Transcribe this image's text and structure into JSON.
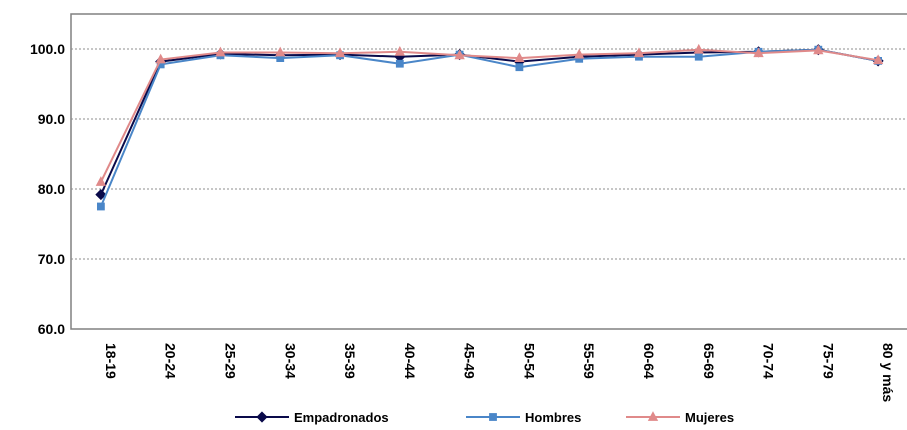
{
  "chart_data": {
    "type": "line",
    "categories": [
      "18-19",
      "20-24",
      "25-29",
      "30-34",
      "35-39",
      "40-44",
      "45-49",
      "50-54",
      "55-59",
      "60-64",
      "65-69",
      "70-74",
      "75-79",
      "80 y más"
    ],
    "ylim": [
      60,
      105
    ],
    "yticks": [
      "60.0",
      "70.0",
      "80.0",
      "90.0",
      "100.0"
    ],
    "title": "",
    "xlabel": "",
    "ylabel": "",
    "grid": "horizontal dotted",
    "legend_position": "bottom",
    "series": [
      {
        "name": "Empadronados",
        "color": "#0a0a4a",
        "marker": "diamond",
        "values": [
          79.2,
          98.2,
          99.3,
          99.1,
          99.2,
          98.9,
          99.2,
          98.2,
          98.9,
          99.2,
          99.5,
          99.6,
          99.9,
          98.3
        ]
      },
      {
        "name": "Hombres",
        "color": "#4a86c8",
        "marker": "square",
        "values": [
          77.5,
          97.8,
          99.1,
          98.7,
          99.1,
          97.9,
          99.2,
          97.4,
          98.6,
          98.9,
          98.9,
          99.6,
          99.9,
          98.3
        ]
      },
      {
        "name": "Mujeres",
        "color": "#e08a8a",
        "marker": "triangle",
        "values": [
          81.0,
          98.5,
          99.5,
          99.5,
          99.4,
          99.6,
          99.1,
          98.7,
          99.2,
          99.4,
          99.9,
          99.4,
          99.8,
          98.4
        ]
      }
    ]
  }
}
